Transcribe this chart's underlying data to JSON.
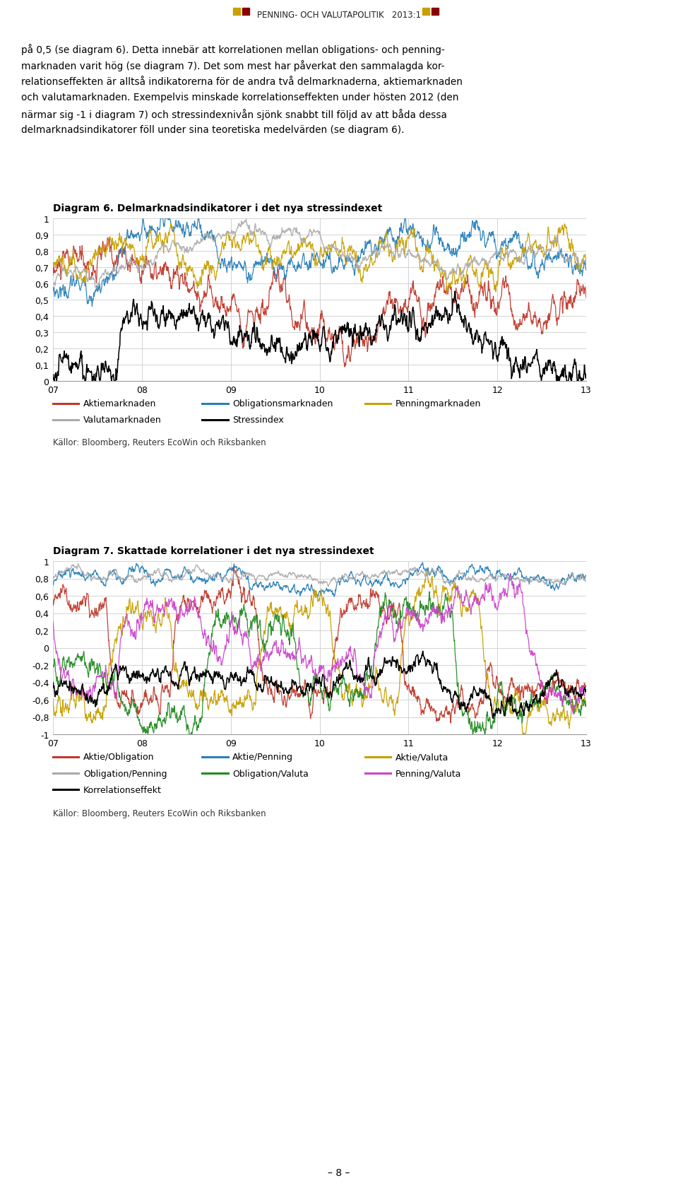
{
  "title_header": "PENNING- OCH VALUTAPOLITIK   2013:1",
  "body_text_lines": [
    "på 0,5 (se diagram 6). Detta innebär att korrelationen mellan obligations- och penning-",
    "marknaden varit hög (se diagram 7). Det som mest har påverkat den sammalagda kor-",
    "relationseffekten är alltså indikatorerna för de andra två delmarknaderna, aktiemarknaden",
    "och valutamarknaden. Exempelvis minskade korrelationseffekten under hösten 2012 (den",
    "närmar sig -1 i diagram 7) och stressindexnivån sjönk snabbt till följd av att båda dessa",
    "delmarknadsindikatorer föll under sina teoretiska medelvärden (se diagram 6)."
  ],
  "diagram6_title": "Diagram 6. Delmarknadsindikatorer i det nya stressindexet",
  "diagram6_ylim": [
    0,
    1
  ],
  "diagram6_yticks": [
    0,
    0.1,
    0.2,
    0.3,
    0.4,
    0.5,
    0.6,
    0.7,
    0.8,
    0.9,
    1
  ],
  "diagram6_ytick_labels": [
    "0",
    "0,1",
    "0,2",
    "0,3",
    "0,4",
    "0,5",
    "0,6",
    "0,7",
    "0,8",
    "0,9",
    "1"
  ],
  "diagram6_xticks": [
    0,
    1,
    2,
    3,
    4,
    5,
    6
  ],
  "diagram6_xtick_labels": [
    "07",
    "08",
    "09",
    "10",
    "11",
    "12",
    "13"
  ],
  "diagram6_legend": [
    {
      "label": "Aktiemarknaden",
      "color": "#C0392B"
    },
    {
      "label": "Obligationsmarknaden",
      "color": "#2980B9"
    },
    {
      "label": "Penningmarknaden",
      "color": "#C8A000"
    },
    {
      "label": "Valutamarknaden",
      "color": "#AAAAAA"
    },
    {
      "label": "Stressindex",
      "color": "#000000"
    }
  ],
  "diagram6_source": "Källor: Bloomberg, Reuters EcoWin och Riksbanken",
  "diagram7_title": "Diagram 7. Skattade korrelationer i det nya stressindexet",
  "diagram7_ylim": [
    -1,
    1
  ],
  "diagram7_yticks": [
    -1,
    -0.8,
    -0.6,
    -0.4,
    -0.2,
    0,
    0.2,
    0.4,
    0.6,
    0.8,
    1
  ],
  "diagram7_ytick_labels": [
    "-1",
    "-0,8",
    "-0,6",
    "-0,4",
    "-0,2",
    "0",
    "0,2",
    "0,4",
    "0,6",
    "0,8",
    "1"
  ],
  "diagram7_xticks": [
    0,
    1,
    2,
    3,
    4,
    5,
    6
  ],
  "diagram7_xtick_labels": [
    "07",
    "08",
    "09",
    "10",
    "11",
    "12",
    "13"
  ],
  "diagram7_legend": [
    {
      "label": "Aktie/Obligation",
      "color": "#C0392B"
    },
    {
      "label": "Aktie/Penning",
      "color": "#2980B9"
    },
    {
      "label": "Aktie/Valuta",
      "color": "#C8A000"
    },
    {
      "label": "Obligation/Penning",
      "color": "#AAAAAA"
    },
    {
      "label": "Obligation/Valuta",
      "color": "#228B22"
    },
    {
      "label": "Penning/Valuta",
      "color": "#CC44CC"
    },
    {
      "label": "Korrelationseffekt",
      "color": "#000000"
    }
  ],
  "diagram7_source": "Källor: Bloomberg, Reuters EcoWin och Riksbanken",
  "page_number": "– 8 –",
  "background_color": "#FFFFFF",
  "grid_color": "#CCCCCC",
  "font_color": "#000000",
  "header_sq1_color": "#C8A000",
  "header_sq2_color": "#8B0000"
}
